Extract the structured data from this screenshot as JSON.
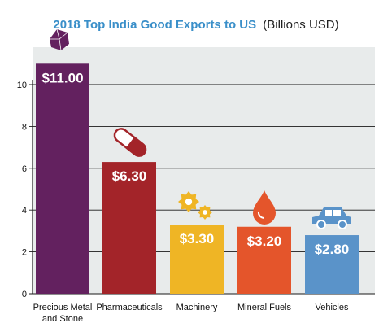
{
  "title": {
    "main": "2018 Top India Good Exports to US",
    "unit": "(Billions USD)"
  },
  "chart_data": {
    "type": "bar",
    "title": "2018 Top India Good Exports to US (Billions USD)",
    "xlabel": "",
    "ylabel": "",
    "ylim": [
      0,
      10
    ],
    "yticks": [
      0,
      2,
      4,
      6,
      8,
      10
    ],
    "grid": true,
    "categories": [
      [
        "Precious Metal",
        "and Stone"
      ],
      [
        "Pharmaceuticals"
      ],
      [
        "Machinery"
      ],
      [
        "Mineral Fuels"
      ],
      [
        "Vehicles"
      ]
    ],
    "values": [
      11.0,
      6.3,
      3.3,
      3.2,
      2.8
    ],
    "data_labels": [
      "$11.00",
      "$6.30",
      "$3.30",
      "$3.20",
      "$2.80"
    ],
    "colors": [
      "#63215f",
      "#a32429",
      "#efb525",
      "#e4552b",
      "#5a93c9"
    ],
    "icons": [
      "gem-icon",
      "pill-icon",
      "gears-icon",
      "drop-icon",
      "car-icon"
    ],
    "plot_background": "#e8ebeb"
  }
}
